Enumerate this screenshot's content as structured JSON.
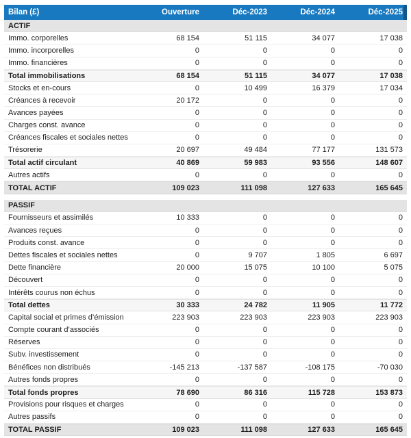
{
  "colors": {
    "header_bg": "#1879c0",
    "header_cap": "#14568a",
    "header_text": "#ffffff",
    "section_row_bg": "#e4e4e4",
    "subtotal_row_bg": "#f6f6f6",
    "total_row_bg": "#e4e4e4",
    "body_text": "#1c1c1c"
  },
  "table": {
    "currency_unit": "£",
    "columns": [
      "Bilan (£)",
      "Ouverture",
      "Déc-2023",
      "Déc-2024",
      "Déc-2025"
    ],
    "rows": [
      {
        "type": "section",
        "label": "ACTIF",
        "values": [
          "",
          "",
          "",
          ""
        ]
      },
      {
        "type": "normal",
        "label": "Immo. corporelles",
        "values": [
          "68 154",
          "51 115",
          "34 077",
          "17 038"
        ]
      },
      {
        "type": "normal",
        "label": "Immo. incorporelles",
        "values": [
          "0",
          "0",
          "0",
          "0"
        ]
      },
      {
        "type": "normal",
        "label": "Immo. financières",
        "values": [
          "0",
          "0",
          "0",
          "0"
        ]
      },
      {
        "type": "subtotal",
        "label": "Total immobilisations",
        "values": [
          "68 154",
          "51 115",
          "34 077",
          "17 038"
        ]
      },
      {
        "type": "normal",
        "label": "Stocks et en-cours",
        "values": [
          "0",
          "10 499",
          "16 379",
          "17 034"
        ]
      },
      {
        "type": "normal",
        "label": "Créances à recevoir",
        "values": [
          "20 172",
          "0",
          "0",
          "0"
        ]
      },
      {
        "type": "normal",
        "label": "Avances payées",
        "values": [
          "0",
          "0",
          "0",
          "0"
        ]
      },
      {
        "type": "normal",
        "label": "Charges const. avance",
        "values": [
          "0",
          "0",
          "0",
          "0"
        ]
      },
      {
        "type": "normal",
        "label": "Créances fiscales et sociales nettes",
        "values": [
          "0",
          "0",
          "0",
          "0"
        ]
      },
      {
        "type": "normal",
        "label": "Trésorerie",
        "values": [
          "20 697",
          "49 484",
          "77 177",
          "131 573"
        ]
      },
      {
        "type": "subtotal",
        "label": "Total actif circulant",
        "values": [
          "40 869",
          "59 983",
          "93 556",
          "148 607"
        ]
      },
      {
        "type": "normal",
        "label": "Autres actifs",
        "values": [
          "0",
          "0",
          "0",
          "0"
        ]
      },
      {
        "type": "total",
        "label": "TOTAL ACTIF",
        "values": [
          "109 023",
          "111 098",
          "127 633",
          "165 645"
        ]
      },
      {
        "type": "spacer",
        "label": "",
        "values": [
          "",
          "",
          "",
          ""
        ]
      },
      {
        "type": "section",
        "label": "PASSIF",
        "values": [
          "",
          "",
          "",
          ""
        ]
      },
      {
        "type": "normal",
        "label": "Fournisseurs et assimilés",
        "values": [
          "10 333",
          "0",
          "0",
          "0"
        ]
      },
      {
        "type": "normal",
        "label": "Avances reçues",
        "values": [
          "0",
          "0",
          "0",
          "0"
        ]
      },
      {
        "type": "normal",
        "label": "Produits const. avance",
        "values": [
          "0",
          "0",
          "0",
          "0"
        ]
      },
      {
        "type": "normal",
        "label": "Dettes fiscales et sociales nettes",
        "values": [
          "0",
          "9 707",
          "1 805",
          "6 697"
        ]
      },
      {
        "type": "normal",
        "label": "Dette financière",
        "values": [
          "20 000",
          "15 075",
          "10 100",
          "5 075"
        ]
      },
      {
        "type": "normal",
        "label": "Découvert",
        "values": [
          "0",
          "0",
          "0",
          "0"
        ]
      },
      {
        "type": "normal",
        "label": "Intérêts courus non échus",
        "values": [
          "0",
          "0",
          "0",
          "0"
        ]
      },
      {
        "type": "subtotal",
        "label": "Total dettes",
        "values": [
          "30 333",
          "24 782",
          "11 905",
          "11 772"
        ]
      },
      {
        "type": "normal",
        "label": "Capital social et primes d’émission",
        "values": [
          "223 903",
          "223 903",
          "223 903",
          "223 903"
        ]
      },
      {
        "type": "normal",
        "label": "Compte courant d’associés",
        "values": [
          "0",
          "0",
          "0",
          "0"
        ]
      },
      {
        "type": "normal",
        "label": "Réserves",
        "values": [
          "0",
          "0",
          "0",
          "0"
        ]
      },
      {
        "type": "normal",
        "label": "Subv. investissement",
        "values": [
          "0",
          "0",
          "0",
          "0"
        ]
      },
      {
        "type": "normal",
        "label": "Bénéfices non distribués",
        "values": [
          "-145 213",
          "-137 587",
          "-108 175",
          "-70 030"
        ]
      },
      {
        "type": "normal",
        "label": "Autres fonds propres",
        "values": [
          "0",
          "0",
          "0",
          "0"
        ]
      },
      {
        "type": "subtotal",
        "label": "Total fonds propres",
        "values": [
          "78 690",
          "86 316",
          "115 728",
          "153 873"
        ]
      },
      {
        "type": "normal",
        "label": "Provisions pour risques et charges",
        "values": [
          "0",
          "0",
          "0",
          "0"
        ]
      },
      {
        "type": "normal",
        "label": "Autres passifs",
        "values": [
          "0",
          "0",
          "0",
          "0"
        ]
      },
      {
        "type": "total",
        "label": "TOTAL PASSIF",
        "values": [
          "109 023",
          "111 098",
          "127 633",
          "165 645"
        ]
      }
    ]
  }
}
